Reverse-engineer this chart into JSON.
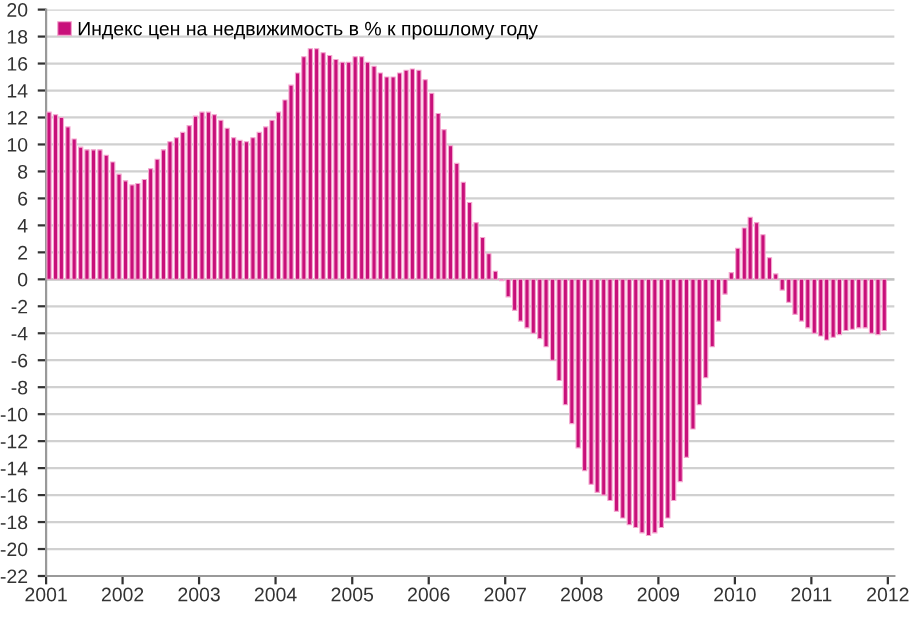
{
  "chart_data": {
    "type": "bar",
    "x": [
      "2001-01",
      "2001-02",
      "2001-03",
      "2001-04",
      "2001-05",
      "2001-06",
      "2001-07",
      "2001-08",
      "2001-09",
      "2001-10",
      "2001-11",
      "2001-12",
      "2002-01",
      "2002-02",
      "2002-03",
      "2002-04",
      "2002-05",
      "2002-06",
      "2002-07",
      "2002-08",
      "2002-09",
      "2002-10",
      "2002-11",
      "2002-12",
      "2003-01",
      "2003-02",
      "2003-03",
      "2003-04",
      "2003-05",
      "2003-06",
      "2003-07",
      "2003-08",
      "2003-09",
      "2003-10",
      "2003-11",
      "2003-12",
      "2004-01",
      "2004-02",
      "2004-03",
      "2004-04",
      "2004-05",
      "2004-06",
      "2004-07",
      "2004-08",
      "2004-09",
      "2004-10",
      "2004-11",
      "2004-12",
      "2005-01",
      "2005-02",
      "2005-03",
      "2005-04",
      "2005-05",
      "2005-06",
      "2005-07",
      "2005-08",
      "2005-09",
      "2005-10",
      "2005-11",
      "2005-12",
      "2006-01",
      "2006-02",
      "2006-03",
      "2006-04",
      "2006-05",
      "2006-06",
      "2006-07",
      "2006-08",
      "2006-09",
      "2006-10",
      "2006-11",
      "2006-12",
      "2007-01",
      "2007-02",
      "2007-03",
      "2007-04",
      "2007-05",
      "2007-06",
      "2007-07",
      "2007-08",
      "2007-09",
      "2007-10",
      "2007-11",
      "2007-12",
      "2008-01",
      "2008-02",
      "2008-03",
      "2008-04",
      "2008-05",
      "2008-06",
      "2008-07",
      "2008-08",
      "2008-09",
      "2008-10",
      "2008-11",
      "2008-12",
      "2009-01",
      "2009-02",
      "2009-03",
      "2009-04",
      "2009-05",
      "2009-06",
      "2009-07",
      "2009-08",
      "2009-09",
      "2009-10",
      "2009-11",
      "2009-12",
      "2010-01",
      "2010-02",
      "2010-03",
      "2010-04",
      "2010-05",
      "2010-06",
      "2010-07",
      "2010-08",
      "2010-09",
      "2010-10",
      "2010-11",
      "2010-12",
      "2011-01",
      "2011-02",
      "2011-03",
      "2011-04",
      "2011-05",
      "2011-06",
      "2011-07",
      "2011-08",
      "2011-09",
      "2011-10",
      "2011-11",
      "2011-12"
    ],
    "series": [
      {
        "name": "Индекс цен на недвижимость в % к прошлому году",
        "color": "#c8107a",
        "values": [
          12.4,
          12.2,
          12.0,
          11.3,
          10.4,
          9.8,
          9.6,
          9.6,
          9.6,
          9.2,
          8.7,
          7.8,
          7.3,
          7.0,
          7.1,
          7.4,
          8.2,
          8.9,
          9.6,
          10.2,
          10.5,
          10.9,
          11.4,
          12.1,
          12.4,
          12.4,
          12.2,
          11.8,
          11.2,
          10.5,
          10.3,
          10.2,
          10.5,
          10.9,
          11.3,
          11.8,
          12.4,
          13.3,
          14.4,
          15.3,
          16.5,
          17.1,
          17.1,
          16.8,
          16.6,
          16.3,
          16.1,
          16.1,
          16.5,
          16.5,
          16.1,
          15.8,
          15.3,
          15.0,
          15.0,
          15.3,
          15.5,
          15.6,
          15.5,
          14.8,
          13.8,
          12.3,
          11.1,
          9.9,
          8.6,
          7.2,
          5.7,
          4.2,
          3.1,
          1.9,
          0.6,
          -0.1,
          -1.3,
          -2.3,
          -3.1,
          -3.6,
          -4.0,
          -4.4,
          -5.0,
          -6.0,
          -7.5,
          -9.3,
          -10.7,
          -12.5,
          -14.2,
          -15.2,
          -15.8,
          -16.0,
          -16.4,
          -17.2,
          -17.7,
          -18.2,
          -18.4,
          -18.8,
          -19.0,
          -18.8,
          -18.4,
          -17.7,
          -16.4,
          -15.0,
          -13.2,
          -11.1,
          -9.3,
          -7.3,
          -5.0,
          -3.1,
          -1.1,
          0.5,
          2.3,
          3.8,
          4.6,
          4.2,
          3.3,
          1.6,
          0.4,
          -0.8,
          -1.7,
          -2.6,
          -3.1,
          -3.6,
          -4.0,
          -4.2,
          -4.5,
          -4.3,
          -4.1,
          -3.8,
          -3.7,
          -3.6,
          -3.6,
          -4.0,
          -4.1,
          -3.8
        ]
      }
    ],
    "xlim": [
      "2001-01-01",
      "2012-02-01"
    ],
    "xticks": [
      {
        "value": "2001-01-01",
        "label": "2001"
      },
      {
        "value": "2002-01-01",
        "label": "2002"
      },
      {
        "value": "2003-01-01",
        "label": "2003"
      },
      {
        "value": "2004-01-01",
        "label": "2004"
      },
      {
        "value": "2005-01-01",
        "label": "2005"
      },
      {
        "value": "2006-01-01",
        "label": "2006"
      },
      {
        "value": "2007-01-01",
        "label": "2007"
      },
      {
        "value": "2008-01-01",
        "label": "2008"
      },
      {
        "value": "2009-01-01",
        "label": "2009"
      },
      {
        "value": "2010-01-01",
        "label": "2010"
      },
      {
        "value": "2011-01-01",
        "label": "2011"
      },
      {
        "value": "2012-01-01",
        "label": "2012"
      }
    ],
    "ylim": [
      -22,
      20
    ],
    "yticks": [
      -22,
      -20,
      -18,
      -16,
      -14,
      -12,
      -10,
      -8,
      -6,
      -4,
      -2,
      0,
      2,
      4,
      6,
      8,
      10,
      12,
      14,
      16,
      18,
      20
    ],
    "grid": "y",
    "legend": "top left"
  }
}
